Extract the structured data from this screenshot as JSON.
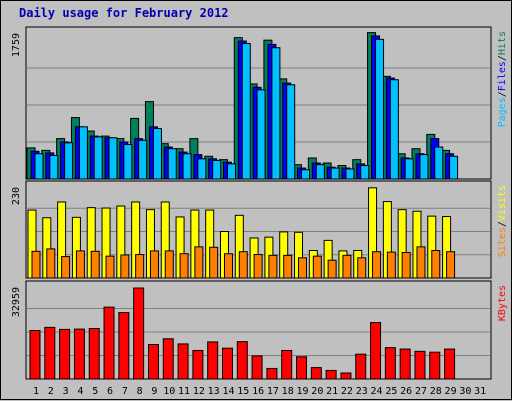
{
  "title": "Daily usage for February 2012",
  "colors": {
    "background": "#c0c0c0",
    "hits": "#00805c",
    "files": "#0000ff",
    "pages": "#00c0ff",
    "visits": "#ffff00",
    "sites": "#ff8000",
    "kbytes": "#ff0000",
    "weekend_label": "#00805c"
  },
  "chart_data": [
    {
      "type": "bar",
      "panel": "hits-files-pages",
      "ymax_label": "1759",
      "ymax": 1759,
      "grid": true,
      "legend": [
        {
          "name": "Pages",
          "color": "#00c0ff"
        },
        {
          "name": "Files",
          "color": "#0000ff"
        },
        {
          "name": "Hits",
          "color": "#00805c"
        }
      ],
      "categories": [
        1,
        2,
        3,
        4,
        5,
        6,
        7,
        8,
        9,
        10,
        11,
        12,
        13,
        14,
        15,
        16,
        17,
        18,
        19,
        20,
        21,
        22,
        23,
        24,
        25,
        26,
        27,
        28,
        29,
        30,
        31
      ],
      "series": [
        {
          "name": "Hits",
          "values": [
            370,
            340,
            480,
            730,
            570,
            510,
            480,
            720,
            920,
            420,
            360,
            480,
            270,
            230,
            1680,
            1130,
            1650,
            1190,
            170,
            250,
            190,
            160,
            230,
            1740,
            1220,
            300,
            360,
            530,
            340,
            0,
            0
          ]
        },
        {
          "name": "Files",
          "values": [
            330,
            310,
            440,
            620,
            510,
            490,
            440,
            480,
            620,
            380,
            320,
            290,
            240,
            200,
            1640,
            1090,
            1600,
            1140,
            130,
            190,
            140,
            130,
            180,
            1700,
            1200,
            250,
            300,
            480,
            300,
            0,
            0
          ]
        },
        {
          "name": "Pages",
          "values": [
            300,
            280,
            430,
            620,
            500,
            490,
            410,
            460,
            600,
            360,
            300,
            240,
            220,
            180,
            1610,
            1060,
            1560,
            1120,
            110,
            170,
            130,
            120,
            160,
            1660,
            1180,
            240,
            290,
            380,
            270,
            0,
            0
          ]
        }
      ]
    },
    {
      "type": "bar",
      "panel": "visits-sites",
      "ymax_label": "230",
      "ymax": 230,
      "grid": true,
      "legend": [
        {
          "name": "Sites",
          "color": "#ff8000"
        },
        {
          "name": "Visits",
          "color": "#ffff00"
        }
      ],
      "categories": [
        1,
        2,
        3,
        4,
        5,
        6,
        7,
        8,
        9,
        10,
        11,
        12,
        13,
        14,
        15,
        16,
        17,
        18,
        19,
        20,
        21,
        22,
        23,
        24,
        25,
        26,
        27,
        28,
        29,
        30,
        31
      ],
      "series": [
        {
          "name": "Visits",
          "values": [
            168,
            149,
            188,
            150,
            174,
            173,
            178,
            188,
            169,
            188,
            151,
            168,
            168,
            115,
            155,
            99,
            101,
            114,
            113,
            68,
            93,
            67,
            68,
            223,
            189,
            169,
            165,
            153,
            152,
            0,
            0
          ]
        },
        {
          "name": "Sites",
          "values": [
            66,
            72,
            53,
            67,
            66,
            54,
            57,
            58,
            67,
            67,
            60,
            77,
            76,
            60,
            65,
            58,
            56,
            56,
            50,
            54,
            44,
            56,
            50,
            65,
            64,
            63,
            77,
            68,
            65,
            0,
            0
          ]
        }
      ]
    },
    {
      "type": "bar",
      "panel": "kbytes",
      "ymax_label": "32959",
      "ymax": 32959,
      "grid": true,
      "legend": [
        {
          "name": "KBytes",
          "color": "#ff0000"
        }
      ],
      "categories": [
        1,
        2,
        3,
        4,
        5,
        6,
        7,
        8,
        9,
        10,
        11,
        12,
        13,
        14,
        15,
        16,
        17,
        18,
        19,
        20,
        21,
        22,
        23,
        24,
        25,
        26,
        27,
        28,
        29,
        30,
        31
      ],
      "series": [
        {
          "name": "KBytes",
          "values": [
            17000,
            18100,
            17400,
            17500,
            17700,
            25200,
            23300,
            31900,
            12100,
            14100,
            12300,
            10000,
            13000,
            10800,
            13100,
            8100,
            3700,
            10000,
            7800,
            4000,
            3000,
            2100,
            8700,
            19800,
            11000,
            10500,
            9700,
            9400,
            10500,
            0,
            0
          ]
        }
      ]
    }
  ],
  "weekend_days": [
    4,
    5,
    11,
    12,
    18,
    19,
    25,
    26
  ]
}
